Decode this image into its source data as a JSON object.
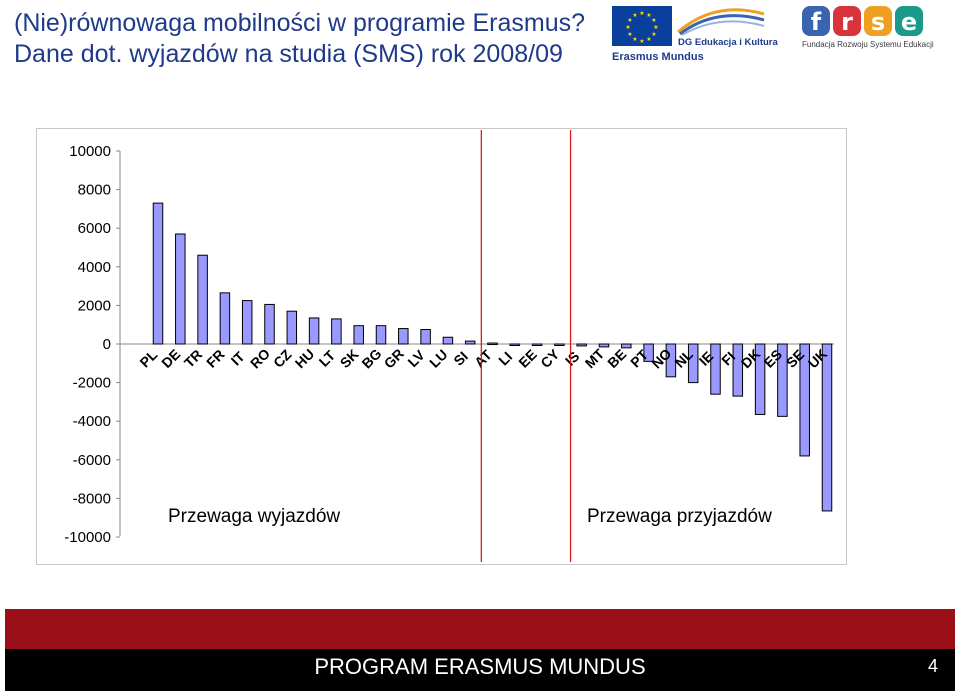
{
  "header": {
    "title_line1": "(Nie)równowaga mobilności w programie Erasmus?",
    "title_line2": "Dane dot. wyjazdów na studia (SMS) rok 2008/09"
  },
  "logos": {
    "dg_text": "DG Edukacja i Kultura",
    "erasmus_mundus_text": "Erasmus Mundus",
    "frse_text": "Fundacja Rozwoju Systemu Edukacji",
    "frse_colors": [
      "#3a64b0",
      "#d8323a",
      "#f0a021",
      "#1a9a8a"
    ]
  },
  "footer": {
    "program": "PROGRAM ERASMUS MUNDUS",
    "page": "4"
  },
  "chart_data": {
    "type": "bar",
    "title": "",
    "xlabel": "",
    "ylabel": "",
    "ylim": [
      -10000,
      10000
    ],
    "yticks": [
      10000,
      8000,
      6000,
      4000,
      2000,
      0,
      -2000,
      -4000,
      -6000,
      -8000,
      -10000
    ],
    "grid": false,
    "bar_color": "#9999ff",
    "categories": [
      "PL",
      "DE",
      "TR",
      "FR",
      "IT",
      "RO",
      "CZ",
      "HU",
      "LT",
      "SK",
      "BG",
      "GR",
      "LV",
      "LU",
      "SI",
      "AT",
      "LI",
      "EE",
      "CY",
      "IS",
      "MT",
      "BE",
      "PT",
      "NO",
      "NL",
      "IE",
      "FI",
      "DK",
      "ES",
      "SE",
      "UK"
    ],
    "values": [
      7300,
      5700,
      4600,
      2650,
      2250,
      2050,
      1700,
      1350,
      1300,
      950,
      950,
      800,
      750,
      350,
      150,
      50,
      0,
      0,
      -50,
      -100,
      -150,
      -200,
      -900,
      -1700,
      -2000,
      -2600,
      -2700,
      -3650,
      -3750,
      -5800,
      -8650
    ],
    "divider_after": [
      "SI",
      "CY"
    ],
    "divider_color": "#e0191e",
    "annotations": {
      "left": "Przewaga wyjazdów",
      "right": "Przewaga przyjazdów"
    }
  }
}
